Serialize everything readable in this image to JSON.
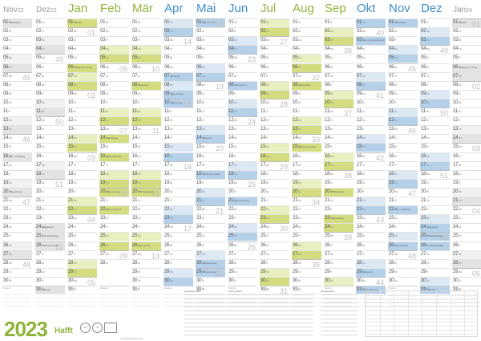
{
  "title": {
    "year": "2023",
    "brand": "Hafft"
  },
  "months": [
    {
      "id": "nov22",
      "name": "Nov",
      "suffix": "22",
      "small": true,
      "color": "#999999",
      "tint": "",
      "days": 30,
      "startDow": 1,
      "holidays": {
        "1": "Allerheiligen",
        "16": "Buß- und Bettag",
        "20": "Totensonntag"
      }
    },
    {
      "id": "dez22",
      "name": "Dez",
      "suffix": "22",
      "small": true,
      "color": "#999999",
      "tint": "",
      "days": 31,
      "startDow": 3,
      "holidays": {
        "24": "Heiligabend",
        "25": "1. Weihnachtstag",
        "26": "2. Weihnachtstag",
        "31": "Silvester"
      }
    },
    {
      "id": "jan",
      "name": "Jan",
      "suffix": "",
      "small": false,
      "color": "#8fb43a",
      "tint": "g",
      "days": 31,
      "startDow": 6,
      "holidays": {
        "1": "Neujahr",
        "6": "Heilige Drei Könige"
      }
    },
    {
      "id": "feb",
      "name": "Feb",
      "suffix": "",
      "small": false,
      "color": "#8fb43a",
      "tint": "g",
      "days": 28,
      "startDow": 2,
      "holidays": {
        "14": "Valentinstag",
        "16": "Weiberfastnacht",
        "20": "Rosenmontag",
        "22": "Aschermittwoch"
      }
    },
    {
      "id": "mar",
      "name": "Mär",
      "suffix": "",
      "small": false,
      "color": "#8fb43a",
      "tint": "g",
      "days": 31,
      "startDow": 2,
      "holidays": {
        "8": "Frauentag",
        "20": "Frühlingsanfang",
        "26": "Sommerzeit"
      }
    },
    {
      "id": "apr",
      "name": "Apr",
      "suffix": "",
      "small": false,
      "color": "#3d8ec9",
      "tint": "b",
      "days": 30,
      "startDow": 5,
      "holidays": {
        "7": "Karfreitag",
        "9": "Ostersonntag",
        "10": "Ostermontag"
      }
    },
    {
      "id": "mai",
      "name": "Mai",
      "suffix": "",
      "small": false,
      "color": "#3d8ec9",
      "tint": "b",
      "days": 31,
      "startDow": 0,
      "holidays": {
        "1": "Tag der Arbeit",
        "14": "Muttertag",
        "18": "Christi Himmelfahrt",
        "28": "Pfingstsonntag",
        "29": "Pfingstmontag"
      }
    },
    {
      "id": "jun",
      "name": "Jun",
      "suffix": "",
      "small": false,
      "color": "#3d8ec9",
      "tint": "b",
      "days": 30,
      "startDow": 3,
      "holidays": {
        "8": "Fronleichnam",
        "21": "Sommeranfang"
      }
    },
    {
      "id": "jul",
      "name": "Jul",
      "suffix": "",
      "small": false,
      "color": "#8fb43a",
      "tint": "g",
      "days": 31,
      "startDow": 5,
      "holidays": {}
    },
    {
      "id": "aug",
      "name": "Aug",
      "suffix": "",
      "small": false,
      "color": "#8fb43a",
      "tint": "g",
      "days": 31,
      "startDow": 1,
      "holidays": {
        "8": "Friedensfest",
        "15": "Mariä Himmelfahrt"
      }
    },
    {
      "id": "sep",
      "name": "Sep",
      "suffix": "",
      "small": false,
      "color": "#8fb43a",
      "tint": "g",
      "days": 30,
      "startDow": 4,
      "holidays": {
        "20": "Weltkindertag",
        "23": "Herbstanfang"
      }
    },
    {
      "id": "okt",
      "name": "Okt",
      "suffix": "",
      "small": false,
      "color": "#3d8ec9",
      "tint": "b",
      "days": 31,
      "startDow": 6,
      "holidays": {
        "3": "Tag der Deutschen Einheit",
        "29": "Winterzeit",
        "31": "Reformationstag"
      }
    },
    {
      "id": "nov",
      "name": "Nov",
      "suffix": "",
      "small": false,
      "color": "#3d8ec9",
      "tint": "b",
      "days": 30,
      "startDow": 2,
      "holidays": {
        "1": "Allerheiligen",
        "22": "Buß- und Bettag",
        "26": "Totensonntag"
      }
    },
    {
      "id": "dez",
      "name": "Dez",
      "suffix": "",
      "small": false,
      "color": "#3d8ec9",
      "tint": "b",
      "days": 31,
      "startDow": 4,
      "holidays": {
        "24": "Heiligabend",
        "25": "1. Weihnachtstag",
        "26": "2. Weihnachtstag",
        "31": "Silvester"
      }
    },
    {
      "id": "jan24",
      "name": "Jan",
      "suffix": "24",
      "small": true,
      "color": "#999999",
      "tint": "",
      "days": 31,
      "startDow": 0,
      "holidays": {
        "1": "Neujahr",
        "6": "Heilige Drei Könige"
      }
    }
  ],
  "weekdays": [
    "Mo",
    "Di",
    "Mi",
    "Do",
    "Fr",
    "Sa",
    "So"
  ],
  "notes_label": "Notizen",
  "info": {
    "holidays_title": "Feiertage 2023",
    "school_title": "Ferien 2023",
    "moon_title": "Mondphasen"
  },
  "copyright": "© Hafft Verlag GmbH"
}
